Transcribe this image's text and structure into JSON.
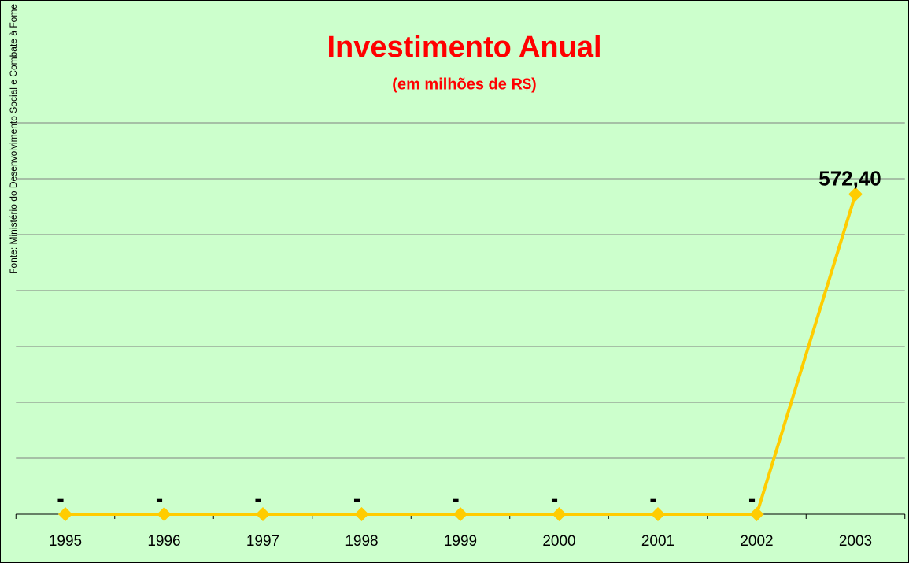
{
  "chart_data": {
    "type": "line",
    "title": "Investimento Anual",
    "subtitle": "(em milhões de R$)",
    "source": "Fonte: Ministério do Desenvolvimento Social e Combate à Fome",
    "categories": [
      "1995",
      "1996",
      "1997",
      "1998",
      "1999",
      "2000",
      "2001",
      "2002",
      "2003"
    ],
    "series": [
      {
        "color": "#ffcc00",
        "values": [
          0,
          0,
          0,
          0,
          0,
          0,
          0,
          0,
          572.4
        ],
        "value_labels": [
          "-",
          "-",
          "-",
          "-",
          "-",
          "-",
          "-",
          "-",
          "572,40"
        ]
      }
    ],
    "ylim": [
      0,
      700
    ],
    "yticks": [
      0,
      100,
      200,
      300,
      400,
      500,
      600,
      700
    ],
    "grid": true
  }
}
